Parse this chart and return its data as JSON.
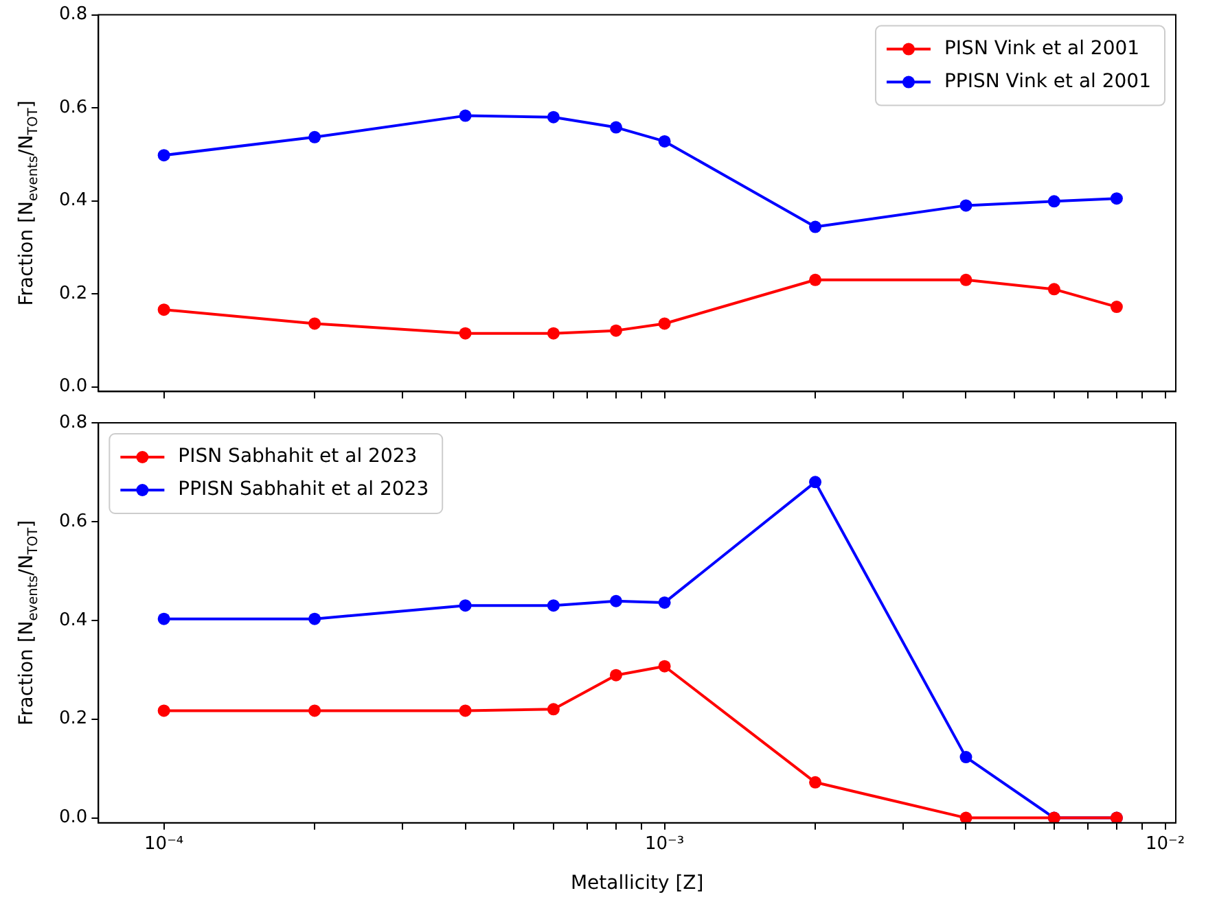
{
  "chart_data": [
    {
      "type": "line",
      "ylabel": "Fraction [N$_{events}$/N$_{TOT}$]",
      "x": [
        0.0001,
        0.0002,
        0.0004,
        0.0006,
        0.0008,
        0.001,
        0.002,
        0.004,
        0.006,
        0.008
      ],
      "log": "x",
      "xlim": [
        7.4e-05,
        0.0105
      ],
      "xticks": [
        {
          "value": 0.0001,
          "label": null
        },
        {
          "value": 0.0002,
          "label": null
        },
        {
          "value": 0.0003,
          "label": null
        },
        {
          "value": 0.0004,
          "label": null
        },
        {
          "value": 0.0005,
          "label": null
        },
        {
          "value": 0.0006,
          "label": null
        },
        {
          "value": 0.0007,
          "label": null
        },
        {
          "value": 0.0008,
          "label": null
        },
        {
          "value": 0.0009,
          "label": null
        },
        {
          "value": 0.001,
          "label": null
        },
        {
          "value": 0.002,
          "label": null
        },
        {
          "value": 0.003,
          "label": null
        },
        {
          "value": 0.004,
          "label": null
        },
        {
          "value": 0.005,
          "label": null
        },
        {
          "value": 0.006,
          "label": null
        },
        {
          "value": 0.007,
          "label": null
        },
        {
          "value": 0.008,
          "label": null
        },
        {
          "value": 0.009,
          "label": null
        },
        {
          "value": 0.01,
          "label": null
        }
      ],
      "ylim": [
        -0.01,
        0.8
      ],
      "yticks": [
        {
          "value": 0,
          "label": "0.0"
        },
        {
          "value": 0.2,
          "label": "0.2"
        },
        {
          "value": 0.4,
          "label": "0.4"
        },
        {
          "value": 0.6,
          "label": "0.6"
        },
        {
          "value": 0.8,
          "label": "0.8"
        }
      ],
      "tick_labels": "y",
      "marker": "circle",
      "legend": "top right",
      "series": [
        {
          "name": "PISN Vink et al 2001",
          "color": "#ff0000",
          "values": [
            0.166,
            0.136,
            0.115,
            0.115,
            0.121,
            0.136,
            0.23,
            0.23,
            0.21,
            0.172
          ]
        },
        {
          "name": "PPISN Vink et al 2001",
          "color": "#0000ff",
          "values": [
            0.498,
            0.537,
            0.583,
            0.58,
            0.558,
            0.528,
            0.344,
            0.39,
            0.399,
            0.405
          ]
        }
      ]
    },
    {
      "type": "line",
      "xlabel": "Metallicity [Z]",
      "ylabel": "Fraction [N$_{events}$/N$_{TOT}$]",
      "x": [
        0.0001,
        0.0002,
        0.0004,
        0.0006,
        0.0008,
        0.001,
        0.002,
        0.004,
        0.006,
        0.008
      ],
      "log": "x",
      "xlim": [
        7.4e-05,
        0.0105
      ],
      "xticks": [
        {
          "value": 0.0001,
          "label": "10⁻⁴"
        },
        {
          "value": 0.0002,
          "label": null
        },
        {
          "value": 0.0003,
          "label": null
        },
        {
          "value": 0.0004,
          "label": null
        },
        {
          "value": 0.0005,
          "label": null
        },
        {
          "value": 0.0006,
          "label": null
        },
        {
          "value": 0.0007,
          "label": null
        },
        {
          "value": 0.0008,
          "label": null
        },
        {
          "value": 0.0009,
          "label": null
        },
        {
          "value": 0.001,
          "label": "10⁻³"
        },
        {
          "value": 0.002,
          "label": null
        },
        {
          "value": 0.003,
          "label": null
        },
        {
          "value": 0.004,
          "label": null
        },
        {
          "value": 0.005,
          "label": null
        },
        {
          "value": 0.006,
          "label": null
        },
        {
          "value": 0.007,
          "label": null
        },
        {
          "value": 0.008,
          "label": null
        },
        {
          "value": 0.009,
          "label": null
        },
        {
          "value": 0.01,
          "label": "10⁻²"
        }
      ],
      "ylim": [
        -0.01,
        0.8
      ],
      "yticks": [
        {
          "value": 0,
          "label": "0.0"
        },
        {
          "value": 0.2,
          "label": "0.2"
        },
        {
          "value": 0.4,
          "label": "0.4"
        },
        {
          "value": 0.6,
          "label": "0.6"
        },
        {
          "value": 0.8,
          "label": "0.8"
        }
      ],
      "marker": "circle",
      "legend": "top left",
      "series": [
        {
          "name": "PISN Sabhahit et al 2023",
          "color": "#ff0000",
          "values": [
            0.217,
            0.217,
            0.217,
            0.22,
            0.289,
            0.307,
            0.072,
            0,
            0,
            0
          ]
        },
        {
          "name": "PPISN Sabhahit et al 2023",
          "color": "#0000ff",
          "values": [
            0.403,
            0.403,
            0.43,
            0.43,
            0.439,
            0.436,
            0.68,
            0.123,
            0,
            0
          ]
        }
      ]
    }
  ]
}
